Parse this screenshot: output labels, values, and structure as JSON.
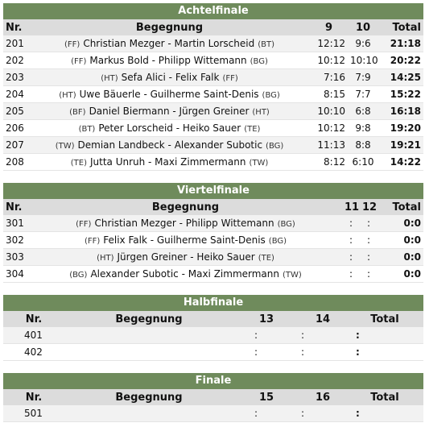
{
  "sections": [
    {
      "title": "Achtelfinale",
      "columns": [
        "Nr.",
        "Begegnung",
        "9",
        "10",
        "Total"
      ],
      "rows": [
        {
          "nr": "201",
          "club1": "(FF)",
          "match": "Christian Mezger - Martin Lorscheid",
          "club2": "(BT)",
          "g1": "12:12",
          "g2": "9:6",
          "total": "21:18"
        },
        {
          "nr": "202",
          "club1": "(FF)",
          "match": "Markus Bold - Philipp Wittemann",
          "club2": "(BG)",
          "g1": "10:12",
          "g2": "10:10",
          "total": "20:22"
        },
        {
          "nr": "203",
          "club1": "(HT)",
          "match": "Sefa Alici - Felix Falk",
          "club2": "(FF)",
          "g1": "7:16",
          "g2": "7:9",
          "total": "14:25"
        },
        {
          "nr": "204",
          "club1": "(HT)",
          "match": "Uwe Bäuerle - Guilherme Saint-Denis",
          "club2": "(BG)",
          "g1": "8:15",
          "g2": "7:7",
          "total": "15:22"
        },
        {
          "nr": "205",
          "club1": "(BF)",
          "match": "Daniel Biermann - Jürgen Greiner",
          "club2": "(HT)",
          "g1": "10:10",
          "g2": "6:8",
          "total": "16:18"
        },
        {
          "nr": "206",
          "club1": "(BT)",
          "match": "Peter Lorscheid - Heiko Sauer",
          "club2": "(TE)",
          "g1": "10:12",
          "g2": "9:8",
          "total": "19:20"
        },
        {
          "nr": "207",
          "club1": "(TW)",
          "match": "Demian Landbeck - Alexander Subotic",
          "club2": "(BG)",
          "g1": "11:13",
          "g2": "8:8",
          "total": "19:21"
        },
        {
          "nr": "208",
          "club1": "(TE)",
          "match": "Jutta Unruh - Maxi Zimmermann",
          "club2": "(TW)",
          "g1": "8:12",
          "g2": "6:10",
          "total": "14:22"
        }
      ]
    },
    {
      "title": "Viertelfinale",
      "columns": [
        "Nr.",
        "Begegnung",
        "11",
        "12",
        "Total"
      ],
      "rows": [
        {
          "nr": "301",
          "club1": "(FF)",
          "match": "Christian Mezger - Philipp Wittemann",
          "club2": "(BG)",
          "g1": ":",
          "g2": ":",
          "total": "0:0"
        },
        {
          "nr": "302",
          "club1": "(FF)",
          "match": "Felix Falk - Guilherme Saint-Denis",
          "club2": "(BG)",
          "g1": ":",
          "g2": ":",
          "total": "0:0"
        },
        {
          "nr": "303",
          "club1": "(HT)",
          "match": "Jürgen Greiner - Heiko Sauer",
          "club2": "(TE)",
          "g1": ":",
          "g2": ":",
          "total": "0:0"
        },
        {
          "nr": "304",
          "club1": "(BG)",
          "match": "Alexander Subotic - Maxi Zimmermann",
          "club2": "(TW)",
          "g1": ":",
          "g2": ":",
          "total": "0:0"
        }
      ]
    },
    {
      "title": "Halbfinale",
      "columns": [
        "Nr.",
        "Begegnung",
        "13",
        "14",
        "Total"
      ],
      "rows": [
        {
          "nr": "401",
          "g1": ":",
          "g2": ":",
          "total": ":"
        },
        {
          "nr": "402",
          "g1": ":",
          "g2": ":",
          "total": ":"
        }
      ]
    },
    {
      "title": "Finale",
      "columns": [
        "Nr.",
        "Begegnung",
        "15",
        "16",
        "Total"
      ],
      "rows": [
        {
          "nr": "501",
          "g1": ":",
          "g2": ":",
          "total": ":"
        }
      ]
    }
  ]
}
